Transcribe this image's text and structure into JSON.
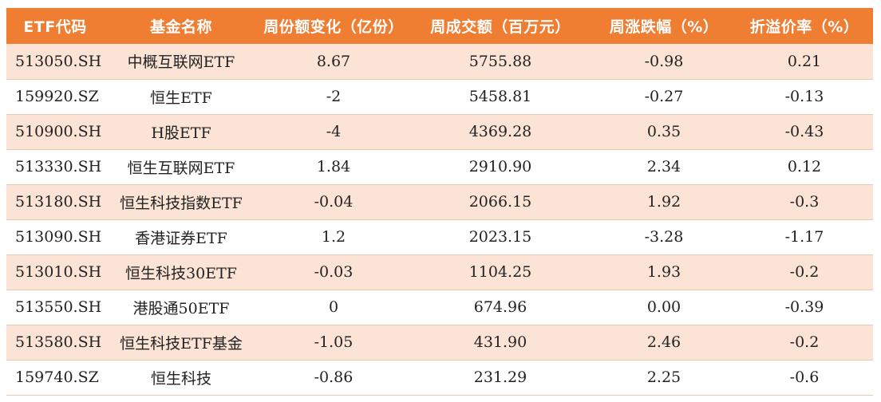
{
  "table": {
    "headers": [
      "ETF代码",
      "基金名称",
      "周份额变化（亿份）",
      "周成交额（百万元）",
      "周涨跌幅（%）",
      "折溢价率（%）"
    ],
    "rows": [
      [
        "513050.SH",
        "中概互联网ETF",
        "8.67",
        "5755.88",
        "-0.98",
        "0.21"
      ],
      [
        "159920.SZ",
        "恒生ETF",
        "-2",
        "5458.81",
        "-0.27",
        "-0.13"
      ],
      [
        "510900.SH",
        "H股ETF",
        "-4",
        "4369.28",
        "0.35",
        "-0.43"
      ],
      [
        "513330.SH",
        "恒生互联网ETF",
        "1.84",
        "2910.90",
        "2.34",
        "0.12"
      ],
      [
        "513180.SH",
        "恒生科技指数ETF",
        "-0.04",
        "2066.15",
        "1.92",
        "-0.3"
      ],
      [
        "513090.SH",
        "香港证券ETF",
        "1.2",
        "2023.15",
        "-3.28",
        "-1.17"
      ],
      [
        "513010.SH",
        "恒生科技30ETF",
        "-0.03",
        "1104.25",
        "1.93",
        "-0.2"
      ],
      [
        "513550.SH",
        "港股通50ETF",
        "0",
        "674.96",
        "0.00",
        "-0.39"
      ],
      [
        "513580.SH",
        "恒生科技ETF基金",
        "-1.05",
        "431.90",
        "2.46",
        "-0.2"
      ],
      [
        "159740.SZ",
        "恒生科技",
        "-0.86",
        "231.29",
        "2.25",
        "-0.6"
      ]
    ]
  },
  "colors": {
    "header_bg": "#ef7d32",
    "header_text": "#ffffff",
    "row_alt_bg": "#fbe4d6",
    "row_bg": "#ffffff",
    "divider": "#e5c9b0"
  }
}
